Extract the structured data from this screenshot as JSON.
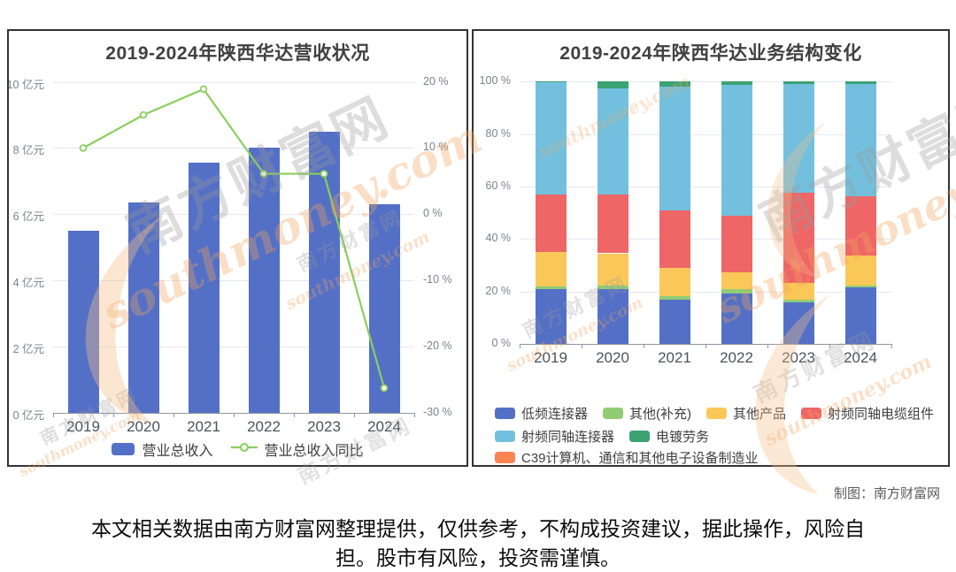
{
  "page": {
    "credit": "制图：南方财富网",
    "disclaimer": "本文相关数据由南方财富网整理提供，仅供参考，不构成投资建议，据此操作，风险自担。股市有风险，投资需谨慎。",
    "watermark": {
      "cn": "南方财富网",
      "en": "southmoney.com"
    }
  },
  "chart_data": [
    {
      "type": "bar",
      "title": "2019-2024年陕西华达营收状况",
      "categories": [
        "2019",
        "2020",
        "2021",
        "2022",
        "2023",
        "2024"
      ],
      "series": [
        {
          "name": "营业总收入",
          "kind": "bar",
          "unit": "亿元",
          "color": "#5470c6",
          "axis": "left",
          "values": [
            5.5,
            6.35,
            7.55,
            8.0,
            8.5,
            6.3
          ]
        },
        {
          "name": "营业总收入同比",
          "kind": "line",
          "unit": "%",
          "color": "#8bce5c",
          "axis": "right",
          "values": [
            10,
            15,
            18.9,
            6.1,
            6.1,
            -26.3
          ]
        }
      ],
      "left_axis": {
        "min": 0,
        "max": 10,
        "ticks": [
          "10 亿元",
          "8 亿元",
          "6 亿元",
          "4 亿元",
          "2 亿元",
          "0 亿元"
        ]
      },
      "right_axis": {
        "min": -30,
        "max": 20,
        "ticks": [
          "20 %",
          "10 %",
          "0 %",
          "-10 %",
          "-20 %",
          "-30 %"
        ]
      },
      "grid": true,
      "legend_position": "bottom"
    },
    {
      "type": "bar",
      "stacked": true,
      "title": "2019-2024年陕西华达业务结构变化",
      "categories": [
        "2019",
        "2020",
        "2021",
        "2022",
        "2023",
        "2024"
      ],
      "y_axis": {
        "min": 0,
        "max": 100,
        "ticks": [
          "100 %",
          "80 %",
          "60 %",
          "40 %",
          "20 %",
          "0 %"
        ]
      },
      "series": [
        {
          "name": "低频连接器",
          "color": "#5470c6",
          "values": [
            20.7,
            20.8,
            16.8,
            19.2,
            15.8,
            21.4
          ]
        },
        {
          "name": "其他(补充)",
          "color": "#91cc75",
          "values": [
            1.0,
            1.5,
            1.3,
            1.5,
            0.9,
            0.8
          ]
        },
        {
          "name": "其他产品",
          "color": "#fac858",
          "values": [
            13.3,
            12.2,
            11.0,
            6.7,
            6.4,
            11.5
          ]
        },
        {
          "name": "射频同轴电缆组件",
          "color": "#ee6666",
          "values": [
            22.0,
            22.5,
            21.6,
            21.5,
            34.5,
            22.5
          ]
        },
        {
          "name": "射频同轴连接器",
          "color": "#73c0de",
          "values": [
            42.7,
            40.5,
            47.3,
            49.9,
            41.5,
            42.8
          ]
        },
        {
          "name": "电镀劳务",
          "color": "#3ba272",
          "values": [
            0.3,
            2.5,
            2.0,
            1.2,
            0.9,
            1.0
          ]
        },
        {
          "name": "C39计算机、通信和其他电子设备制造业",
          "color": "#fc8452",
          "values": [
            0,
            0,
            0,
            0,
            0,
            0
          ]
        }
      ],
      "legend_rows": [
        [
          0,
          1,
          2,
          3
        ],
        [
          4,
          5
        ],
        [
          6
        ]
      ],
      "grid": true,
      "legend_position": "bottom"
    }
  ]
}
